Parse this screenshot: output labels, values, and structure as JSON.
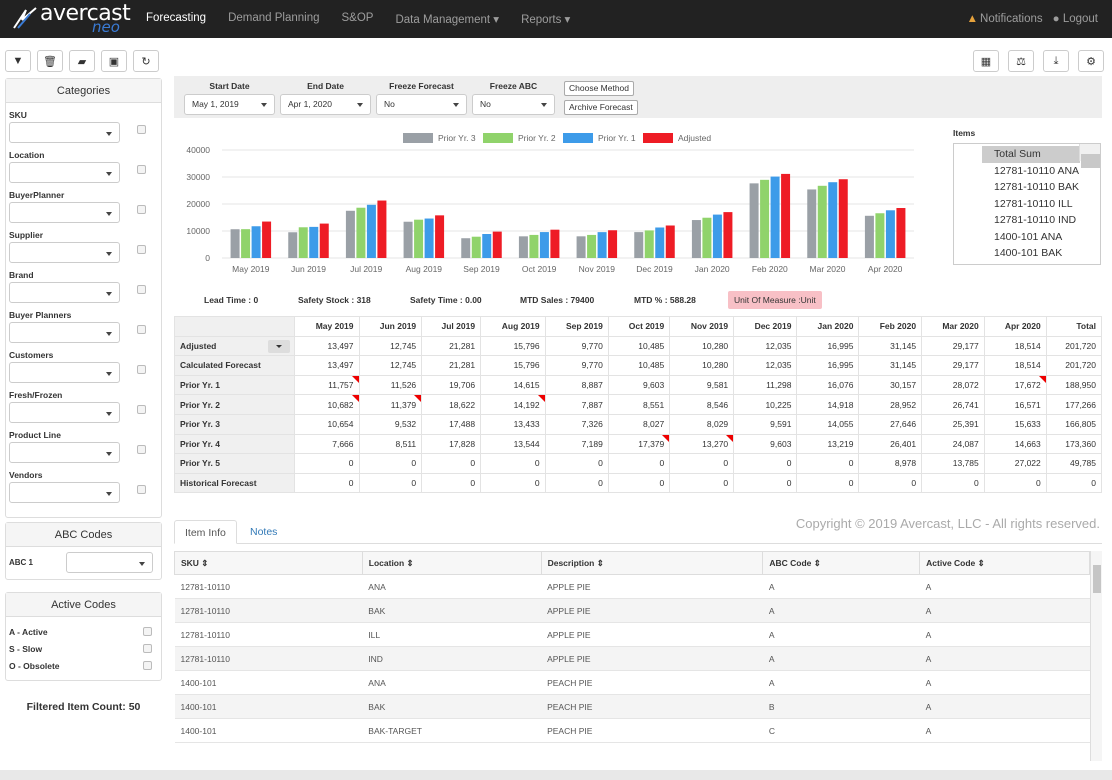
{
  "nav": {
    "logo_main": "avercast",
    "logo_sub": "neo",
    "items": [
      "Forecasting",
      "Demand Planning",
      "S&OP",
      "Data Management ▾",
      "Reports ▾"
    ],
    "notifications": "Notifications",
    "logout": "Logout"
  },
  "toolbar": {
    "left_icons": [
      "filter-icon",
      "trash-icon",
      "folder-icon",
      "save-icon",
      "refresh-icon"
    ],
    "right_icons": [
      "calculator-icon",
      "scale-icon",
      "download-icon",
      "gear-icon"
    ]
  },
  "sidebar": {
    "categories_title": "Categories",
    "categories": [
      "SKU",
      "Location",
      "BuyerPlanner",
      "Supplier",
      "Brand",
      "Buyer Planners",
      "Customers",
      "Fresh/Frozen",
      "Product Line",
      "Vendors"
    ],
    "abc_title": "ABC Codes",
    "abc_label": "ABC 1",
    "active_title": "Active Codes",
    "active_codes": [
      "A - Active",
      "S - Slow",
      "O - Obsolete"
    ],
    "filtered_count": "Filtered Item Count: 50"
  },
  "filters": {
    "start_date_label": "Start Date",
    "start_date": "May 1, 2019",
    "end_date_label": "End Date",
    "end_date": "Apr 1, 2020",
    "freeze_forecast_label": "Freeze Forecast",
    "freeze_forecast": "No",
    "freeze_abc_label": "Freeze ABC",
    "freeze_abc": "No",
    "choose_method": "Choose Method",
    "archive_forecast": "Archive Forecast"
  },
  "chart_data": {
    "type": "bar",
    "categories": [
      "May 2019",
      "Jun 2019",
      "Jul 2019",
      "Aug 2019",
      "Sep 2019",
      "Oct 2019",
      "Nov 2019",
      "Dec 2019",
      "Jan 2020",
      "Feb 2020",
      "Mar 2020",
      "Apr 2020"
    ],
    "series": [
      {
        "name": "Prior Yr. 3",
        "color": "#9aa0a6",
        "values": [
          10654,
          9532,
          17488,
          13433,
          7326,
          8027,
          8029,
          9591,
          14055,
          27646,
          25391,
          15633
        ]
      },
      {
        "name": "Prior Yr. 2",
        "color": "#90d36b",
        "values": [
          10682,
          11379,
          18622,
          14192,
          7887,
          8551,
          8546,
          10225,
          14918,
          28952,
          26741,
          16571
        ]
      },
      {
        "name": "Prior Yr. 1",
        "color": "#3d9be9",
        "values": [
          11757,
          11526,
          19706,
          14615,
          8887,
          9603,
          9581,
          11298,
          16076,
          30157,
          28072,
          17672
        ]
      },
      {
        "name": "Adjusted",
        "color": "#ee1c25",
        "values": [
          13497,
          12745,
          21281,
          15796,
          9770,
          10485,
          10280,
          12035,
          16995,
          31145,
          29177,
          18514
        ]
      }
    ],
    "yticks": [
      "0",
      "10000",
      "20000",
      "30000",
      "40000"
    ],
    "ylim": [
      0,
      40000
    ],
    "grid": true,
    "legend": "top-center"
  },
  "items_list": {
    "label": "Items",
    "entries": [
      "Total Sum",
      "12781-10110 ANA",
      "12781-10110 BAK",
      "12781-10110 ILL",
      "12781-10110 IND",
      "1400-101 ANA",
      "1400-101 BAK"
    ]
  },
  "stats": {
    "lead_time": "Lead Time : 0",
    "safety_stock": "Safety Stock : 318",
    "safety_time": "Safety Time : 0.00",
    "mtd_sales": "MTD Sales : 79400",
    "mtd_pct": "MTD % : 588.28",
    "uom": "Unit Of Measure :Unit"
  },
  "forecast_table": {
    "headers": [
      "May 2019",
      "Jun 2019",
      "Jul 2019",
      "Aug 2019",
      "Sep 2019",
      "Oct 2019",
      "Nov 2019",
      "Dec 2019",
      "Jan 2020",
      "Feb 2020",
      "Mar 2020",
      "Apr 2020",
      "Total"
    ],
    "rows": [
      {
        "label": "Adjusted",
        "values": [
          "13,497",
          "12,745",
          "21,281",
          "15,796",
          "9,770",
          "10,485",
          "10,280",
          "12,035",
          "16,995",
          "31,145",
          "29,177",
          "18,514",
          "201,720"
        ]
      },
      {
        "label": "Calculated Forecast",
        "values": [
          "13,497",
          "12,745",
          "21,281",
          "15,796",
          "9,770",
          "10,485",
          "10,280",
          "12,035",
          "16,995",
          "31,145",
          "29,177",
          "18,514",
          "201,720"
        ]
      },
      {
        "label": "Prior Yr. 1",
        "values": [
          "11,757",
          "11,526",
          "19,706",
          "14,615",
          "8,887",
          "9,603",
          "9,581",
          "11,298",
          "16,076",
          "30,157",
          "28,072",
          "17,672",
          "188,950"
        ]
      },
      {
        "label": "Prior Yr. 2",
        "values": [
          "10,682",
          "11,379",
          "18,622",
          "14,192",
          "7,887",
          "8,551",
          "8,546",
          "10,225",
          "14,918",
          "28,952",
          "26,741",
          "16,571",
          "177,266"
        ]
      },
      {
        "label": "Prior Yr. 3",
        "values": [
          "10,654",
          "9,532",
          "17,488",
          "13,433",
          "7,326",
          "8,027",
          "8,029",
          "9,591",
          "14,055",
          "27,646",
          "25,391",
          "15,633",
          "166,805"
        ]
      },
      {
        "label": "Prior Yr. 4",
        "values": [
          "7,666",
          "8,511",
          "17,828",
          "13,544",
          "7,189",
          "17,379",
          "13,270",
          "9,603",
          "13,219",
          "26,401",
          "24,087",
          "14,663",
          "173,360"
        ]
      },
      {
        "label": "Prior Yr. 5",
        "values": [
          "0",
          "0",
          "0",
          "0",
          "0",
          "0",
          "0",
          "0",
          "0",
          "8,978",
          "13,785",
          "27,022",
          "49,785"
        ]
      },
      {
        "label": "Historical Forecast",
        "values": [
          "0",
          "0",
          "0",
          "0",
          "0",
          "0",
          "0",
          "0",
          "0",
          "0",
          "0",
          "0",
          "0"
        ]
      }
    ],
    "marked_cells": [
      [
        2,
        0
      ],
      [
        3,
        0
      ],
      [
        3,
        1
      ],
      [
        3,
        3
      ],
      [
        2,
        11
      ],
      [
        5,
        5
      ],
      [
        5,
        6
      ]
    ]
  },
  "tabs": [
    "Item Info",
    "Notes"
  ],
  "copyright": "Copyright © 2019 Avercast, LLC - All rights reserved.",
  "items_table": {
    "headers": [
      "SKU ⇕",
      "Location ⇕",
      "Description ⇕",
      "ABC Code ⇕",
      "Active Code ⇕"
    ],
    "rows": [
      [
        "12781-10110",
        "ANA",
        "APPLE PIE",
        "A",
        "A"
      ],
      [
        "12781-10110",
        "BAK",
        "APPLE PIE",
        "A",
        "A"
      ],
      [
        "12781-10110",
        "ILL",
        "APPLE PIE",
        "A",
        "A"
      ],
      [
        "12781-10110",
        "IND",
        "APPLE PIE",
        "A",
        "A"
      ],
      [
        "1400-101",
        "ANA",
        "PEACH PIE",
        "A",
        "A"
      ],
      [
        "1400-101",
        "BAK",
        "PEACH PIE",
        "B",
        "A"
      ],
      [
        "1400-101",
        "BAK-TARGET",
        "PEACH PIE",
        "C",
        "A"
      ]
    ]
  }
}
